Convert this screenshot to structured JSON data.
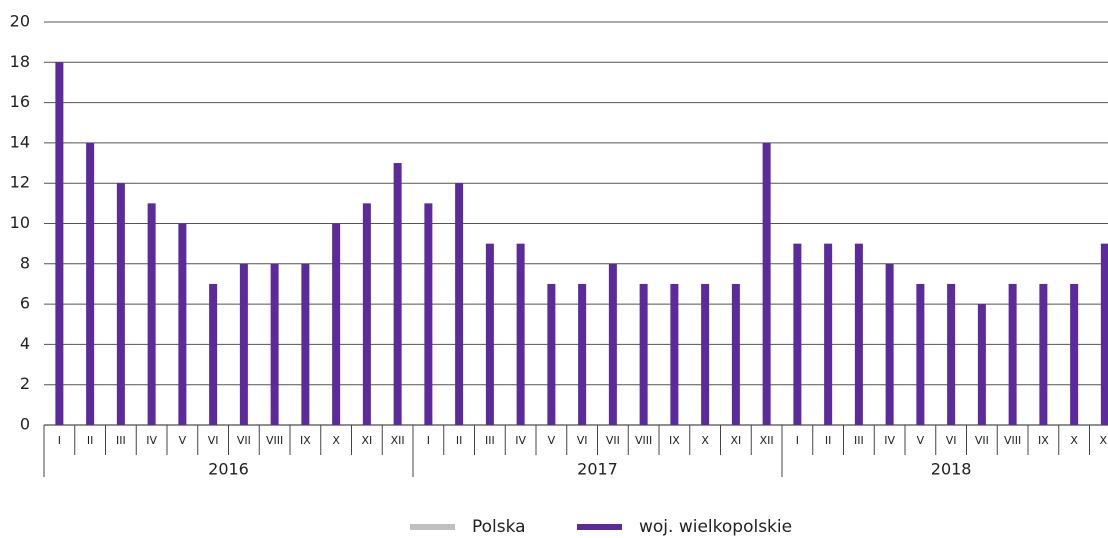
{
  "chart_data": {
    "type": "bar",
    "groups": [
      {
        "name": "2016",
        "categories": [
          "I",
          "II",
          "III",
          "IV",
          "V",
          "VI",
          "VII",
          "VIII",
          "IX",
          "X",
          "XI",
          "XII"
        ]
      },
      {
        "name": "2017",
        "categories": [
          "I",
          "II",
          "III",
          "IV",
          "V",
          "VI",
          "VII",
          "VIII",
          "IX",
          "X",
          "XI",
          "XII"
        ]
      },
      {
        "name": "2018",
        "categories": [
          "I",
          "II",
          "III",
          "IV",
          "V",
          "VI",
          "VII",
          "VIII",
          "IX",
          "X",
          "XI"
        ]
      }
    ],
    "series": [
      {
        "name": "Polska",
        "color": "#c0c0c0",
        "values": [
          null,
          null,
          null,
          null,
          null,
          null,
          null,
          null,
          null,
          null,
          null,
          null,
          null,
          null,
          null,
          null,
          null,
          null,
          null,
          null,
          null,
          null,
          null,
          null,
          null,
          null,
          null,
          null,
          null,
          null,
          null,
          null,
          null,
          null,
          null
        ]
      },
      {
        "name": "woj. wielkopolskie",
        "color": "#5b2a9b",
        "values": [
          18,
          14,
          12,
          11,
          10,
          7,
          8,
          8,
          8,
          10,
          11,
          13,
          11,
          12,
          9,
          9,
          7,
          7,
          8,
          7,
          7,
          7,
          7,
          14,
          9,
          9,
          9,
          8,
          7,
          7,
          6,
          7,
          7,
          7,
          9
        ]
      }
    ],
    "ylim": [
      0,
      20
    ],
    "yticks": [
      0,
      2,
      4,
      6,
      8,
      10,
      12,
      14,
      16,
      18,
      20
    ],
    "grid": true
  }
}
